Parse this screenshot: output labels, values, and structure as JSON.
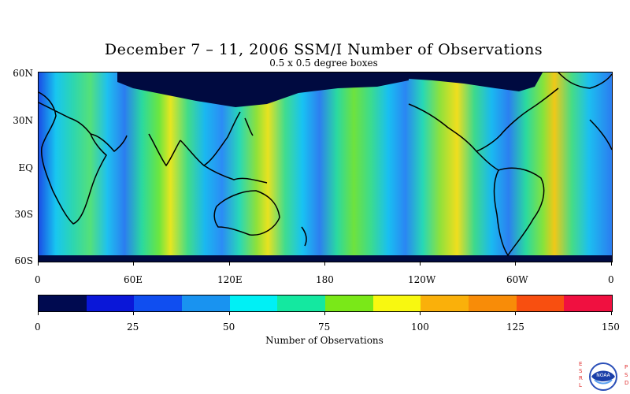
{
  "title": "December 7 – 11, 2006 SSM/I Number of Observations",
  "subtitle": "0.5 x 0.5 degree boxes",
  "lat_labels": [
    "60N",
    "30N",
    "EQ",
    "30S",
    "60S"
  ],
  "lon_labels": [
    "0",
    "60E",
    "120E",
    "180",
    "120W",
    "60W",
    "0"
  ],
  "colorbar": {
    "colors": [
      "#000a50",
      "#0a17d8",
      "#104ef0",
      "#1993f0",
      "#00f0f5",
      "#14e8a0",
      "#7ae818",
      "#f8f810",
      "#fab00a",
      "#f88c08",
      "#f84f10",
      "#f01040"
    ],
    "tick_labels": [
      "0",
      "25",
      "50",
      "75",
      "100",
      "125",
      "150"
    ],
    "title": "Number of Observations"
  },
  "logo": {
    "left_letters": [
      "E",
      "S",
      "R",
      "L"
    ],
    "right_letters": [
      "P",
      "S",
      "D"
    ],
    "center": "NOAA"
  }
}
